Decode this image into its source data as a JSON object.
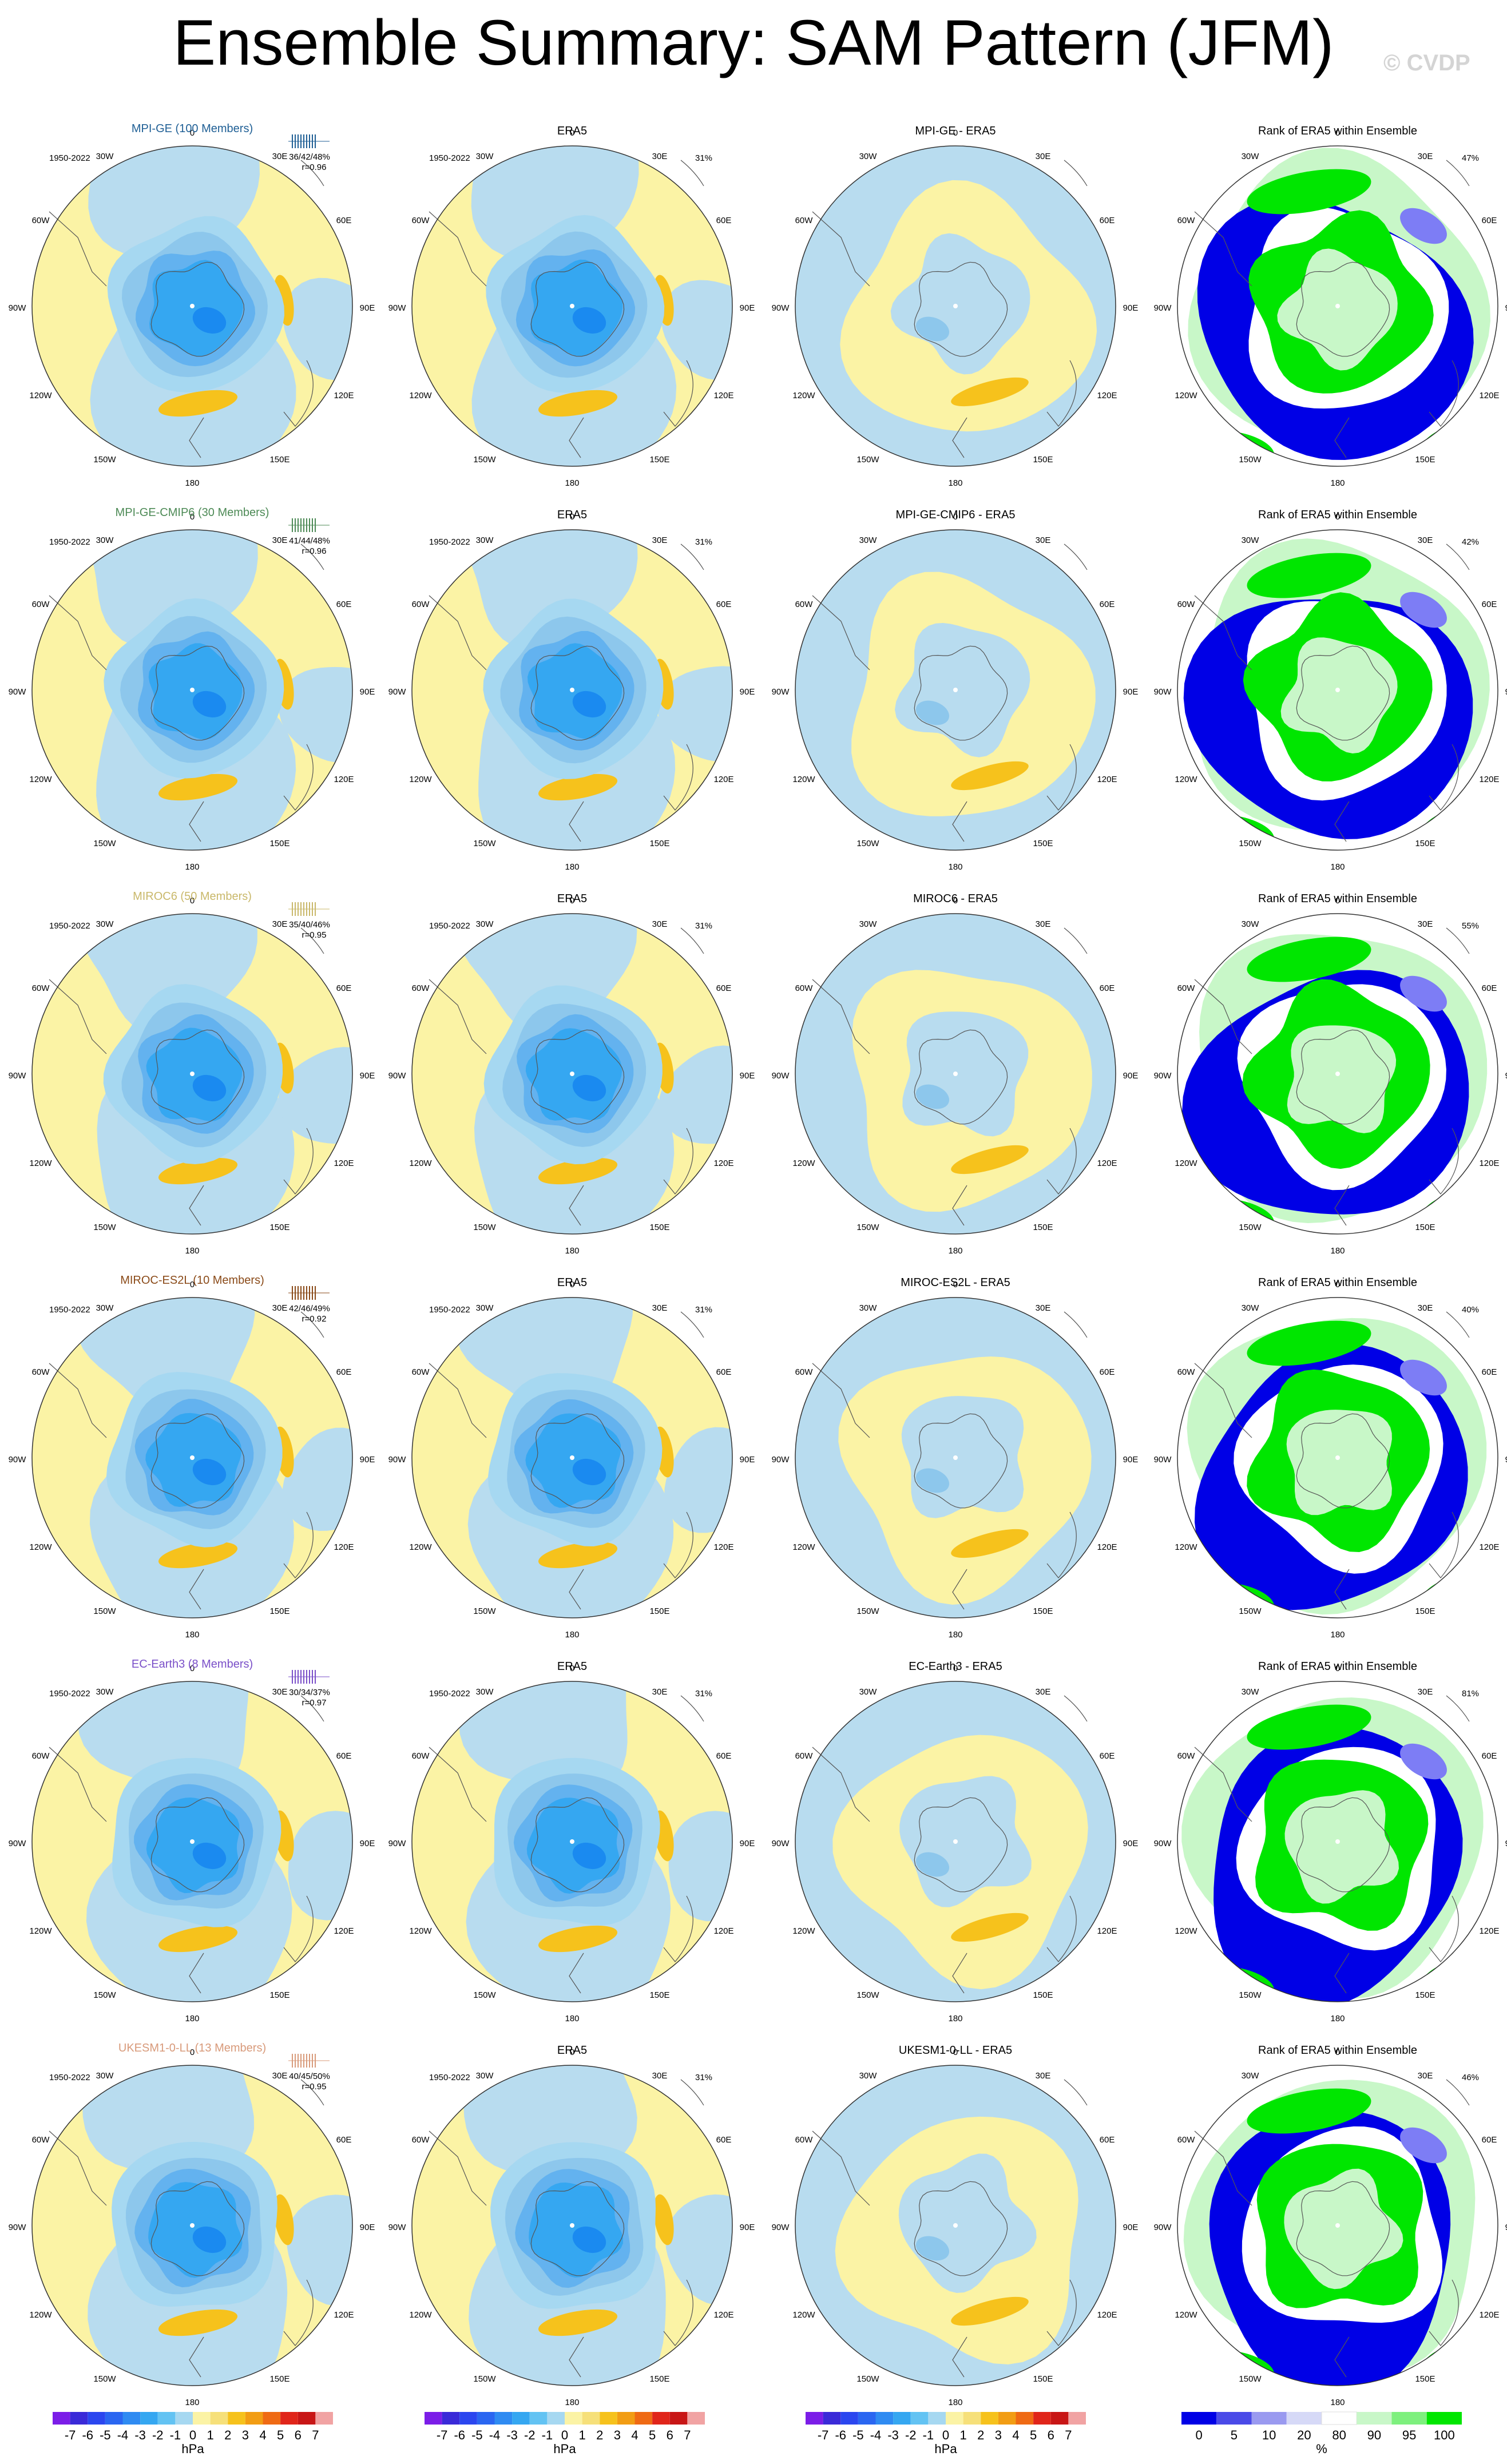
{
  "title": "Ensemble Summary: SAM Pattern (JFM)",
  "copyright": "© CVDP",
  "period": "1950-2022",
  "colors": {
    "yellow": "#fbf3a5",
    "light_blue": "#b8dcef",
    "orange": "#f6c21c",
    "dark_orange": "#ef8a12",
    "blue1": "#8dc7ec",
    "blue2": "#63b2ef",
    "blue3": "#35a7f1",
    "blue4": "#1a8af0",
    "rank_blue": "#0000e6",
    "rank_lavender": "#7d7df5",
    "rank_pale": "#d6d9f7",
    "rank_pale_green": "#c8f7c8",
    "rank_mid_green": "#7ef07e",
    "rank_green": "#00e600"
  },
  "column_titles": {
    "era5": "ERA5",
    "rank": "Rank of ERA5 within Ensemble"
  },
  "era5_percent": "31%",
  "lon_labels": [
    "0",
    "30E",
    "60E",
    "90E",
    "120E",
    "150E",
    "180",
    "150W",
    "120W",
    "90W",
    "60W",
    "30W"
  ],
  "rows": [
    {
      "model": "MPI-GE (100 Members)",
      "diff_title": "MPI-GE - ERA5",
      "color": "#1f5f95",
      "stats": "36/42/48%",
      "r": "r=0.96",
      "rank_pct": "47%"
    },
    {
      "model": "MPI-GE-CMIP6 (30 Members)",
      "diff_title": "MPI-GE-CMIP6 - ERA5",
      "color": "#4d8a56",
      "stats": "41/44/48%",
      "r": "r=0.96",
      "rank_pct": "42%"
    },
    {
      "model": "MIROC6 (50 Members)",
      "diff_title": "MIROC6 - ERA5",
      "color": "#c9b86a",
      "stats": "35/40/46%",
      "r": "r=0.95",
      "rank_pct": "55%"
    },
    {
      "model": "MIROC-ES2L (10 Members)",
      "diff_title": "MIROC-ES2L - ERA5",
      "color": "#8a4a18",
      "stats": "42/46/49%",
      "r": "r=0.92",
      "rank_pct": "40%"
    },
    {
      "model": "EC-Earth3 (8 Members)",
      "diff_title": "EC-Earth3 - ERA5",
      "color": "#7a4fc8",
      "stats": "30/34/37%",
      "r": "r=0.97",
      "rank_pct": "81%"
    },
    {
      "model": "UKESM1-0-LL (13 Members)",
      "diff_title": "UKESM1-0-LL - ERA5",
      "color": "#d89a7a",
      "stats": "40/45/50%",
      "r": "r=0.95",
      "rank_pct": "46%"
    }
  ],
  "colorbar_hpa": {
    "labels": [
      "-7",
      "-6",
      "-5",
      "-4",
      "-3",
      "-2",
      "-1",
      "0",
      "1",
      "2",
      "3",
      "4",
      "5",
      "6",
      "7"
    ],
    "colors": [
      "#7b1de8",
      "#3a2ad8",
      "#2b46ef",
      "#2a66f1",
      "#2f8bf2",
      "#35a7f1",
      "#63c3f3",
      "#a6d8f1",
      "#fbf3a5",
      "#f6e07a",
      "#f6c21c",
      "#f29d14",
      "#ef6a14",
      "#e0251a",
      "#c81616",
      "#f1a3a3"
    ],
    "unit": "hPa"
  },
  "colorbar_rank": {
    "labels": [
      "0",
      "5",
      "10",
      "20",
      "80",
      "90",
      "95",
      "100"
    ],
    "colors": [
      "#0000e6",
      "#4a4ae8",
      "#9a9af0",
      "#d6d9f7",
      "#ffffff",
      "#c8f7c8",
      "#7ef07e",
      "#00e600"
    ],
    "unit": "%"
  },
  "chart_data": [
    {
      "type": "heatmap",
      "title": "MPI-GE (100 Members)",
      "description_values": {
        "stats": "36/42/48%",
        "r": "r=0.96"
      }
    },
    {
      "type": "heatmap",
      "title": "MPI-GE-CMIP6 (30 Members)",
      "description_values": {
        "stats": "41/44/48%",
        "r": "r=0.96"
      }
    },
    {
      "type": "heatmap",
      "title": "MIROC6 (50 Members)",
      "description_values": {
        "stats": "35/40/46%",
        "r": "r=0.95"
      }
    },
    {
      "type": "heatmap",
      "title": "MIROC-ES2L (10 Members)",
      "description_values": {
        "stats": "42/46/49%",
        "r": "r=0.92"
      }
    },
    {
      "type": "heatmap",
      "title": "EC-Earth3 (8 Members)",
      "description_values": {
        "stats": "30/34/37%",
        "r": "r=0.97"
      }
    },
    {
      "type": "heatmap",
      "title": "UKESM1-0-LL (13 Members)",
      "description_values": {
        "stats": "40/45/50%",
        "r": "r=0.95"
      }
    }
  ]
}
